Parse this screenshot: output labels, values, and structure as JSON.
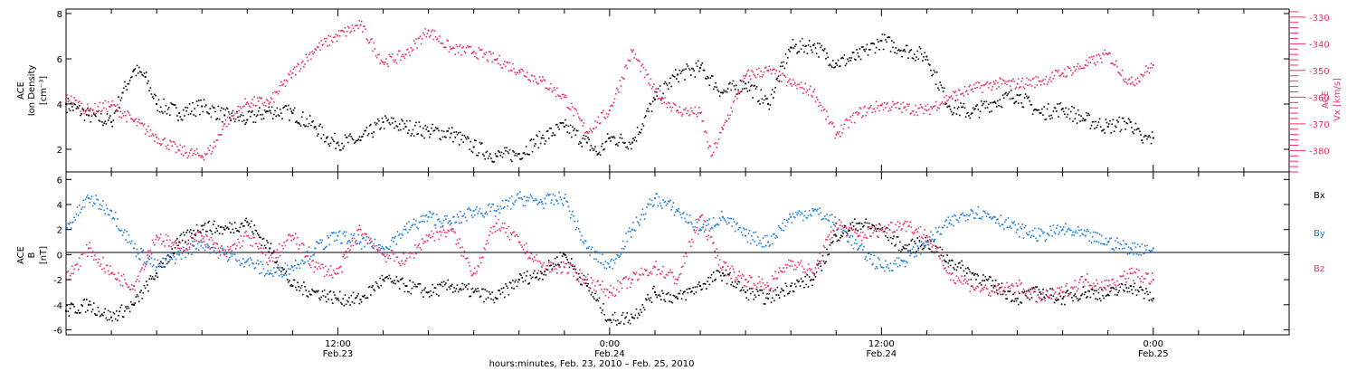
{
  "colors": {
    "black": "#000000",
    "red": "#e8336a",
    "blue": "#1e7fd8"
  },
  "xlabel": "hours:minutes, Feb. 23, 2010 – Feb. 25, 2010",
  "xticks": [
    {
      "hours": 12,
      "time": "12:00",
      "date": "Feb.23"
    },
    {
      "hours": 24,
      "time": "0:00",
      "date": "Feb.24"
    },
    {
      "hours": 36,
      "time": "12:00",
      "date": "Feb.24"
    },
    {
      "hours": 48,
      "time": "0:00",
      "date": "Feb.25"
    }
  ],
  "chart_data": [
    {
      "type": "scatter",
      "ylabel_left": [
        "ACE",
        "Ion Density",
        "[cm⁻³]"
      ],
      "ylabel_right": [
        "ACE",
        "Vx [km/s]"
      ],
      "xlim": [
        0,
        54
      ],
      "ylim": [
        1,
        8.2
      ],
      "yticks": [
        2,
        4,
        6,
        8
      ],
      "ylim_right": [
        -388,
        -327
      ],
      "yticks_right": [
        -330,
        -340,
        -350,
        -360,
        -370,
        -380
      ],
      "series": [
        {
          "color": "black",
          "axis": "left",
          "x": [
            0,
            1,
            2,
            2.5,
            3,
            3.5,
            4,
            5,
            6,
            7,
            8,
            9,
            10,
            11,
            11.5,
            12,
            13,
            14,
            15,
            16,
            17,
            18,
            19,
            20,
            21,
            22,
            23,
            23.5,
            24,
            25,
            26,
            27,
            28,
            29,
            30,
            31,
            32,
            33,
            34,
            35,
            36,
            37,
            38,
            39,
            40,
            41,
            42,
            43,
            44,
            45,
            46,
            47,
            47.5,
            48
          ],
          "y": [
            4.0,
            3.5,
            3.2,
            4.5,
            5.5,
            5.2,
            4.0,
            3.6,
            3.9,
            3.5,
            3.3,
            3.7,
            3.6,
            3.0,
            2.5,
            2.3,
            2.4,
            3.2,
            3.0,
            2.8,
            2.7,
            2.1,
            1.7,
            1.8,
            2.5,
            3.0,
            2.3,
            1.8,
            2.5,
            2.3,
            4.2,
            5.3,
            5.6,
            4.5,
            4.9,
            4.0,
            6.5,
            6.6,
            5.8,
            6.1,
            6.8,
            6.4,
            6.1,
            3.9,
            3.6,
            4.1,
            4.4,
            3.6,
            3.8,
            3.3,
            3.0,
            3.2,
            2.4,
            2.5
          ]
        },
        {
          "color": "red",
          "axis": "right",
          "x": [
            0,
            1,
            2,
            3,
            4,
            5,
            6,
            6.5,
            7,
            8,
            9,
            10,
            11,
            12,
            13,
            14,
            15,
            16,
            17,
            18,
            19,
            20,
            21,
            22,
            23,
            24,
            25,
            26,
            27,
            28,
            28.5,
            29,
            30,
            31,
            32,
            33,
            34,
            35,
            36,
            37,
            38,
            39,
            40,
            41,
            42,
            43,
            44,
            45,
            46,
            47,
            48
          ],
          "y": [
            -360,
            -365,
            -363,
            -369,
            -375,
            -380,
            -382,
            -379,
            -370,
            -362,
            -362,
            -351,
            -342,
            -337,
            -333,
            -347,
            -344,
            -335,
            -342,
            -343,
            -346,
            -350,
            -354,
            -360,
            -373,
            -365,
            -343,
            -358,
            -365,
            -366,
            -382,
            -372,
            -352,
            -350,
            -355,
            -358,
            -374,
            -366,
            -363,
            -364,
            -365,
            -360,
            -357,
            -355,
            -355,
            -354,
            -351,
            -348,
            -344,
            -355,
            -348
          ]
        }
      ]
    },
    {
      "type": "scatter",
      "ylabel_left": [
        "ACE",
        "B",
        "[nT]"
      ],
      "xlim": [
        0,
        54
      ],
      "ylim": [
        -6.4,
        6.6
      ],
      "yticks": [
        -6,
        -4,
        -2,
        0,
        2,
        4,
        6
      ],
      "legend": [
        "Bx",
        "By",
        "Bz"
      ],
      "series": [
        {
          "name": "Bx",
          "color": "black",
          "x": [
            0,
            1,
            2,
            3,
            4,
            5,
            6,
            7,
            8,
            9,
            10,
            11,
            12,
            13,
            14,
            15,
            16,
            17,
            18,
            19,
            20,
            21,
            22,
            23,
            24,
            25,
            26,
            27,
            28,
            29,
            30,
            31,
            32,
            33,
            34,
            35,
            36,
            37,
            38,
            39,
            40,
            41,
            42,
            43,
            44,
            45,
            46,
            47,
            48
          ],
          "y": [
            -4.5,
            -4.0,
            -5.0,
            -4.0,
            -1.5,
            1.0,
            2.3,
            2.0,
            2.6,
            0.5,
            -2.5,
            -3.0,
            -3.5,
            -3.6,
            -2.0,
            -2.5,
            -3.0,
            -2.5,
            -3.0,
            -3.5,
            -2.0,
            -1.5,
            0.0,
            -2.5,
            -5.2,
            -5.0,
            -3.0,
            -3.5,
            -2.5,
            -1.5,
            -3.0,
            -3.5,
            -2.5,
            -2.0,
            1.5,
            2.5,
            2.0,
            0.5,
            1.0,
            -0.5,
            -1.5,
            -2.5,
            -3.5,
            -3.0,
            -3.5,
            -3.0,
            -3.2,
            -2.5,
            -3.5
          ]
        },
        {
          "name": "By",
          "color": "blue",
          "x": [
            0,
            1,
            2,
            3,
            4,
            5,
            6,
            7,
            8,
            9,
            10,
            11,
            12,
            13,
            14,
            15,
            16,
            17,
            18,
            19,
            20,
            21,
            22,
            23,
            24,
            25,
            26,
            27,
            28,
            29,
            30,
            31,
            32,
            33,
            34,
            35,
            36,
            37,
            38,
            39,
            40,
            41,
            42,
            43,
            44,
            45,
            46,
            47,
            48
          ],
          "y": [
            2.0,
            4.5,
            3.5,
            0.5,
            -1.0,
            0.0,
            1.0,
            0.0,
            -0.5,
            -1.5,
            -1.0,
            0.5,
            1.5,
            1.0,
            0.5,
            2.0,
            3.0,
            2.5,
            3.5,
            3.5,
            4.5,
            4.2,
            4.5,
            0.5,
            -1.0,
            2.0,
            4.5,
            3.5,
            2.0,
            3.0,
            1.5,
            1.0,
            3.0,
            3.5,
            2.5,
            0.5,
            -1.0,
            -0.5,
            1.0,
            2.5,
            3.5,
            3.0,
            2.0,
            1.5,
            2.0,
            1.5,
            1.0,
            0.5,
            0.5
          ]
        },
        {
          "name": "Bz",
          "color": "red",
          "x": [
            0,
            1,
            2,
            3,
            4,
            5,
            6,
            7,
            8,
            9,
            10,
            11,
            12,
            13,
            14,
            15,
            16,
            17,
            18,
            19,
            20,
            21,
            22,
            23,
            24,
            25,
            26,
            27,
            28,
            29,
            30,
            31,
            32,
            33,
            34,
            35,
            36,
            37,
            38,
            39,
            40,
            41,
            42,
            43,
            44,
            45,
            46,
            47,
            48
          ],
          "y": [
            -2.0,
            0.5,
            -1.5,
            -2.5,
            1.5,
            0.5,
            1.5,
            0.0,
            1.5,
            -0.5,
            1.5,
            -1.0,
            -1.5,
            2.0,
            0.0,
            -0.5,
            1.5,
            2.0,
            -1.5,
            2.5,
            1.0,
            -1.0,
            -1.0,
            -2.0,
            -3.0,
            -2.0,
            -1.0,
            -2.0,
            3.0,
            -1.0,
            -2.0,
            -2.5,
            -0.5,
            -1.5,
            2.5,
            1.5,
            2.0,
            2.5,
            1.5,
            -1.5,
            -2.5,
            -3.0,
            -2.5,
            -3.5,
            -3.0,
            -2.0,
            -2.5,
            -1.5,
            -2.0
          ]
        }
      ]
    }
  ]
}
